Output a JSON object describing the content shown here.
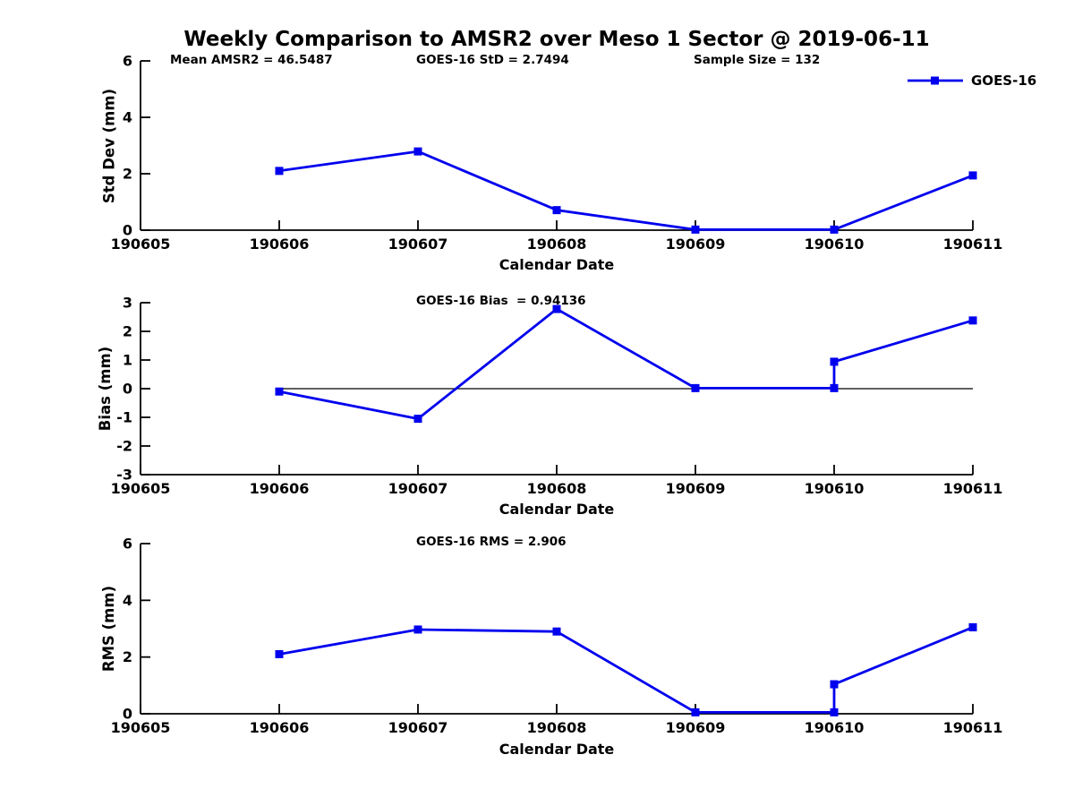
{
  "title": "Weekly Comparison to AMSR2 over Meso 1 Sector @ 2019-06-11",
  "colors": {
    "line": "#0000EE",
    "axis": "#000000",
    "text": "#000000"
  },
  "legend": {
    "label": "GOES-16"
  },
  "chart_data": [
    {
      "type": "line",
      "name": "std-dev",
      "title": "",
      "xlabel": "Calendar Date",
      "ylabel": "Std Dev (mm)",
      "ylim": [
        0,
        6
      ],
      "yticks": [
        0,
        2,
        4,
        6
      ],
      "x_tick_labels": [
        "190605",
        "190606",
        "190607",
        "190608",
        "190609",
        "190610",
        "190611"
      ],
      "annotations": [
        "Mean AMSR2 = 46.5487",
        "GOES-16 StD = 2.7494",
        "Sample Size = 132"
      ],
      "legend_position": "top-right-above-axes",
      "grid": false,
      "series": [
        {
          "name": "GOES-16",
          "x": [
            1,
            2,
            3,
            4,
            5,
            6
          ],
          "x_dates": [
            "190606",
            "190607",
            "190608",
            "190609",
            "190610",
            "190611"
          ],
          "y": [
            2.1,
            2.79,
            0.71,
            0.02,
            0.02,
            1.94
          ]
        }
      ]
    },
    {
      "type": "line",
      "name": "bias",
      "title": "",
      "xlabel": "Calendar Date",
      "ylabel": "Bias (mm)",
      "ylim": [
        -3,
        3
      ],
      "yticks": [
        3,
        2,
        1,
        0,
        -1,
        -2,
        -3
      ],
      "x_tick_labels": [
        "190605",
        "190606",
        "190607",
        "190608",
        "190609",
        "190610",
        "190611"
      ],
      "annotation": "GOES-16 Bias  = 0.94136",
      "grid": false,
      "zero_line": {
        "x": [
          1,
          6
        ],
        "y": 0
      },
      "series": [
        {
          "name": "GOES-16",
          "x": [
            1,
            2,
            3,
            4,
            5,
            5,
            6
          ],
          "x_dates": [
            "190606",
            "190607",
            "190608",
            "190609",
            "190610",
            "190610",
            "190611"
          ],
          "y": [
            -0.1,
            -1.05,
            2.78,
            0.02,
            0.02,
            0.94,
            2.38
          ]
        }
      ]
    },
    {
      "type": "line",
      "name": "rms",
      "title": "",
      "xlabel": "Calendar Date",
      "ylabel": "RMS (mm)",
      "ylim": [
        0,
        6
      ],
      "yticks": [
        0,
        2,
        4,
        6
      ],
      "x_tick_labels": [
        "190605",
        "190606",
        "190607",
        "190608",
        "190609",
        "190610",
        "190611"
      ],
      "annotation": "GOES-16 RMS = 2.906",
      "grid": false,
      "series": [
        {
          "name": "GOES-16",
          "x": [
            1,
            2,
            3,
            4,
            5,
            5,
            6
          ],
          "x_dates": [
            "190606",
            "190607",
            "190608",
            "190609",
            "190610",
            "190610",
            "190611"
          ],
          "y": [
            2.1,
            2.97,
            2.9,
            0.05,
            0.05,
            1.04,
            3.05
          ]
        }
      ]
    }
  ]
}
